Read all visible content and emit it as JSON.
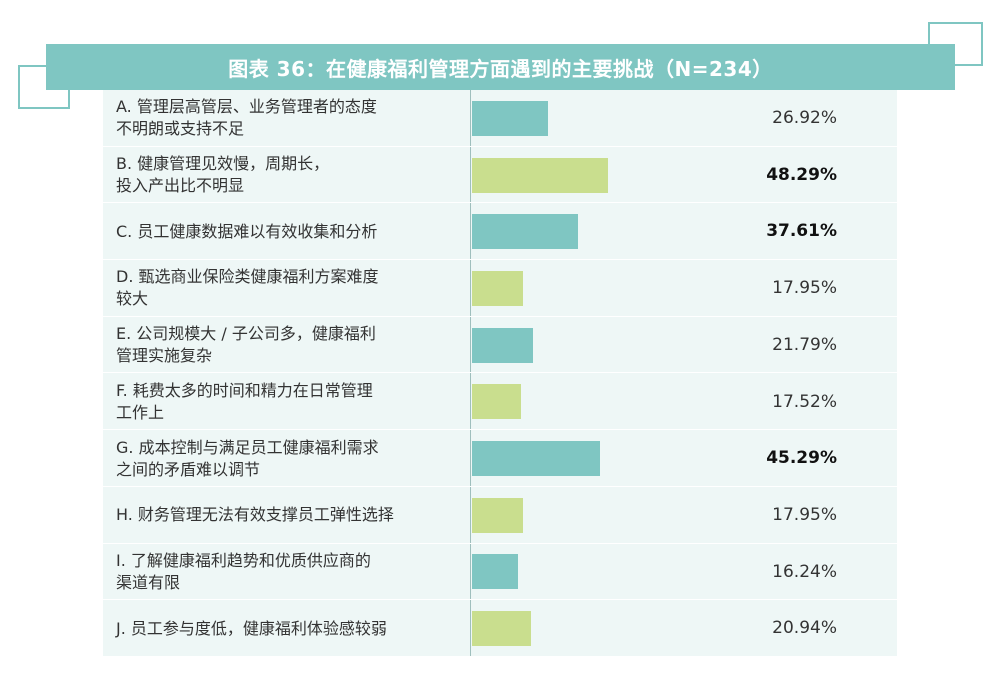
{
  "title": "图表 36：在健康福利管理方面遇到的主要挑战（N=234）",
  "colors": {
    "teal": "#7fc6c2",
    "green": "#c9de8e",
    "row_bg": "#eef7f6"
  },
  "chart_data": {
    "type": "bar",
    "orientation": "horizontal",
    "title": "图表 36：在健康福利管理方面遇到的主要挑战（N=234）",
    "categories": [
      "A. 管理层高管层、业务管理者的态度\n不明朗或支持不足",
      "B. 健康管理见效慢，周期长，\n投入产出比不明显",
      "C. 员工健康数据难以有效收集和分析",
      "D. 甄选商业保险类健康福利方案难度\n较大",
      "E. 公司规模大 / 子公司多，健康福利\n管理实施复杂",
      "F. 耗费太多的时间和精力在日常管理\n工作上",
      "G. 成本控制与满足员工健康福利需求\n之间的矛盾难以调节",
      "H. 财务管理无法有效支撑员工弹性选择",
      "I. 了解健康福利趋势和优质供应商的\n渠道有限",
      "J. 员工参与度低，健康福利体验感较弱"
    ],
    "values": [
      26.92,
      48.29,
      37.61,
      17.95,
      21.79,
      17.52,
      45.29,
      17.95,
      16.24,
      20.94
    ],
    "value_labels": [
      "26.92%",
      "48.29%",
      "37.61%",
      "17.95%",
      "21.79%",
      "17.52%",
      "45.29%",
      "17.95%",
      "16.24%",
      "20.94%"
    ],
    "bold": [
      false,
      true,
      true,
      false,
      false,
      false,
      true,
      false,
      false,
      false
    ],
    "bar_colors": [
      "#7fc6c2",
      "#c9de8e",
      "#7fc6c2",
      "#c9de8e",
      "#7fc6c2",
      "#c9de8e",
      "#7fc6c2",
      "#c9de8e",
      "#7fc6c2",
      "#c9de8e"
    ],
    "xlim": [
      0,
      100
    ]
  }
}
